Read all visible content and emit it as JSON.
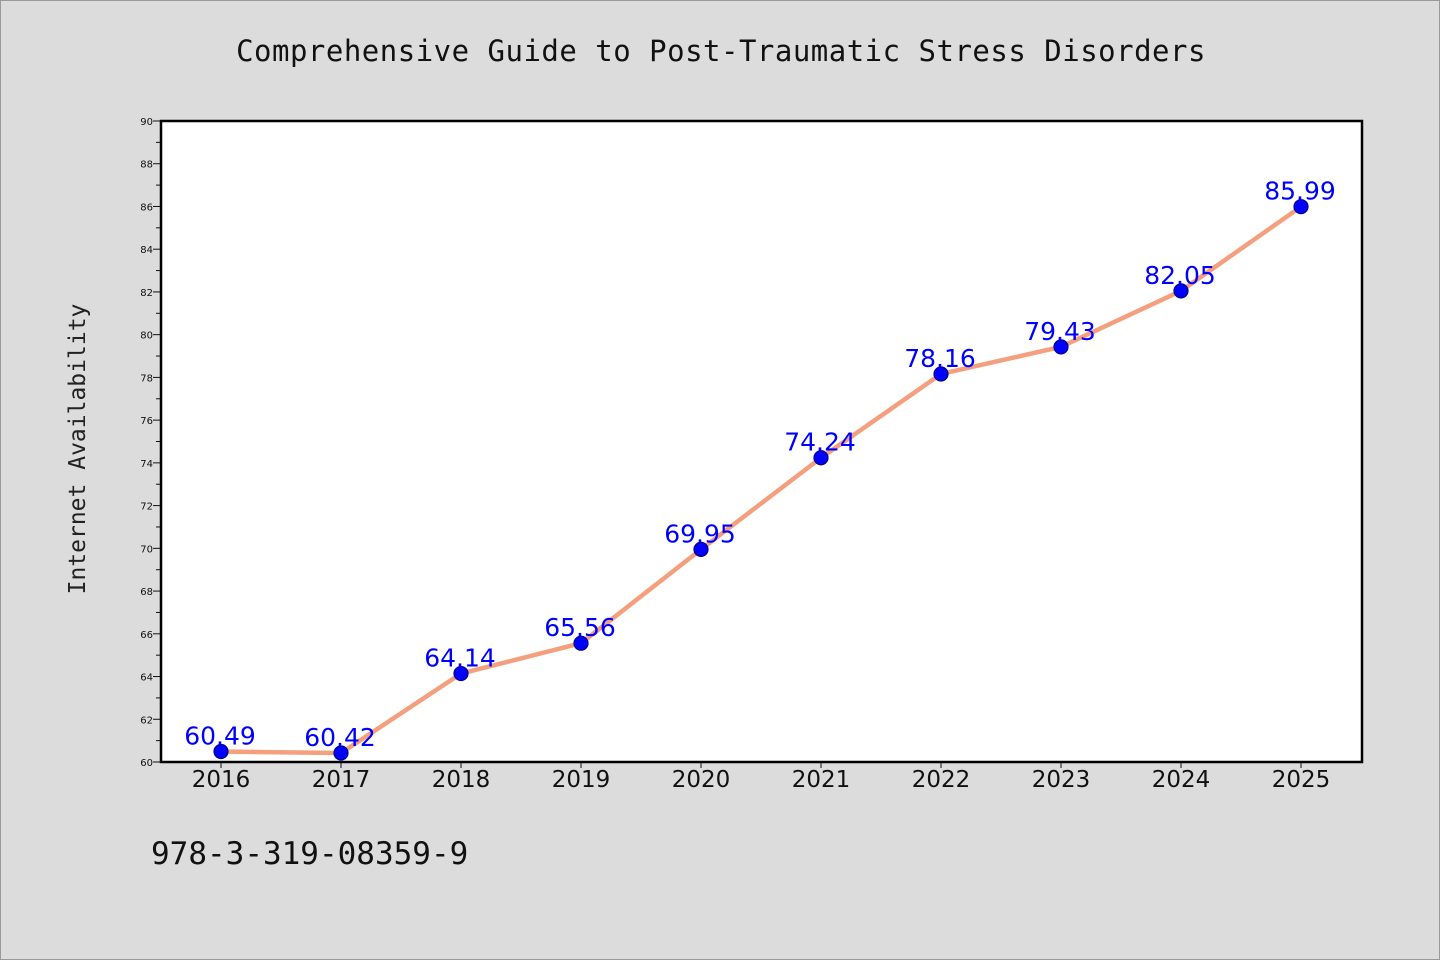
{
  "chart_data": {
    "type": "line",
    "title": "Comprehensive Guide to Post-Traumatic Stress Disorders",
    "ylabel": "Internet Availability",
    "xlabel": "",
    "categories": [
      "2016",
      "2017",
      "2018",
      "2019",
      "2020",
      "2021",
      "2022",
      "2023",
      "2024",
      "2025"
    ],
    "series": [
      {
        "values": [
          60.49,
          60.42,
          64.14,
          65.56,
          69.95,
          74.24,
          78.16,
          79.43,
          82.05,
          85.99
        ],
        "labels": [
          "60.49",
          "60.42",
          "64.14",
          "65.56",
          "69.95",
          "74.24",
          "78.16",
          "79.43",
          "82.05",
          "85.99"
        ]
      }
    ],
    "ylim": [
      60,
      90
    ],
    "yticks": [
      "60",
      "62",
      "64",
      "66",
      "68",
      "70",
      "72",
      "74",
      "76",
      "78",
      "80",
      "82",
      "84",
      "86",
      "88",
      "90"
    ],
    "grid": false,
    "legend": "none",
    "colors": {
      "line": "#f4a07e",
      "marker": "#0000ff",
      "label": "#0000ff",
      "background": "#dcdcdc",
      "plot_background": "#ffffff"
    }
  },
  "footer": {
    "text": "978-3-319-08359-9"
  }
}
